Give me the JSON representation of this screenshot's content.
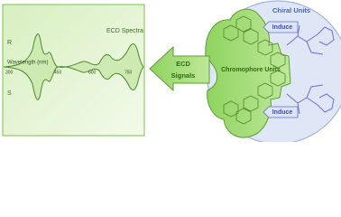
{
  "spectra_panel": {
    "title": "ECD Spectra",
    "r_label": "R",
    "s_label": "S",
    "x_axis_label": "Wavelength (nm)",
    "x_ticks": [
      "300",
      "450",
      "600",
      "750"
    ]
  },
  "arrow": {
    "label": [
      "ECD",
      "Signals"
    ]
  },
  "chromophore": {
    "label": "Chromophore Units"
  },
  "chiral": {
    "label": "Chiral Units",
    "induce": [
      "Induce",
      "Induce"
    ]
  }
}
